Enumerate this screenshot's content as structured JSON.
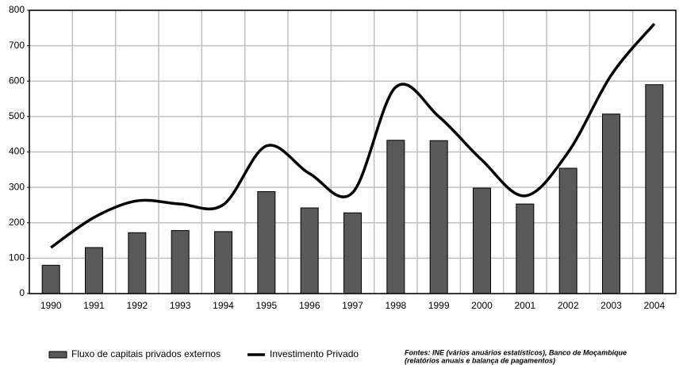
{
  "chart_data": {
    "type": "bar_line",
    "categories": [
      "1990",
      "1991",
      "1992",
      "1993",
      "1994",
      "1995",
      "1996",
      "1997",
      "1998",
      "1999",
      "2000",
      "2001",
      "2002",
      "2003",
      "2004"
    ],
    "series": [
      {
        "name": "Fluxo de capitais privados externos",
        "type": "bar",
        "color": "#595959",
        "values": [
          80,
          130,
          172,
          178,
          175,
          288,
          242,
          228,
          433,
          432,
          298,
          253,
          354,
          507,
          590
        ]
      },
      {
        "name": "Investimento Privado",
        "type": "line",
        "color": "#000000",
        "values": [
          130,
          215,
          262,
          253,
          251,
          417,
          339,
          285,
          583,
          500,
          377,
          276,
          399,
          617,
          762
        ]
      }
    ],
    "ylim": [
      0,
      800
    ],
    "yticks": [
      0,
      100,
      200,
      300,
      400,
      500,
      600,
      700,
      800
    ],
    "grid": true,
    "annotations": [
      "Fontes: INE (vários anuários estatísticos), Banco de Moçambique",
      "(relatórios anuais e balança de pagamentos)"
    ]
  }
}
